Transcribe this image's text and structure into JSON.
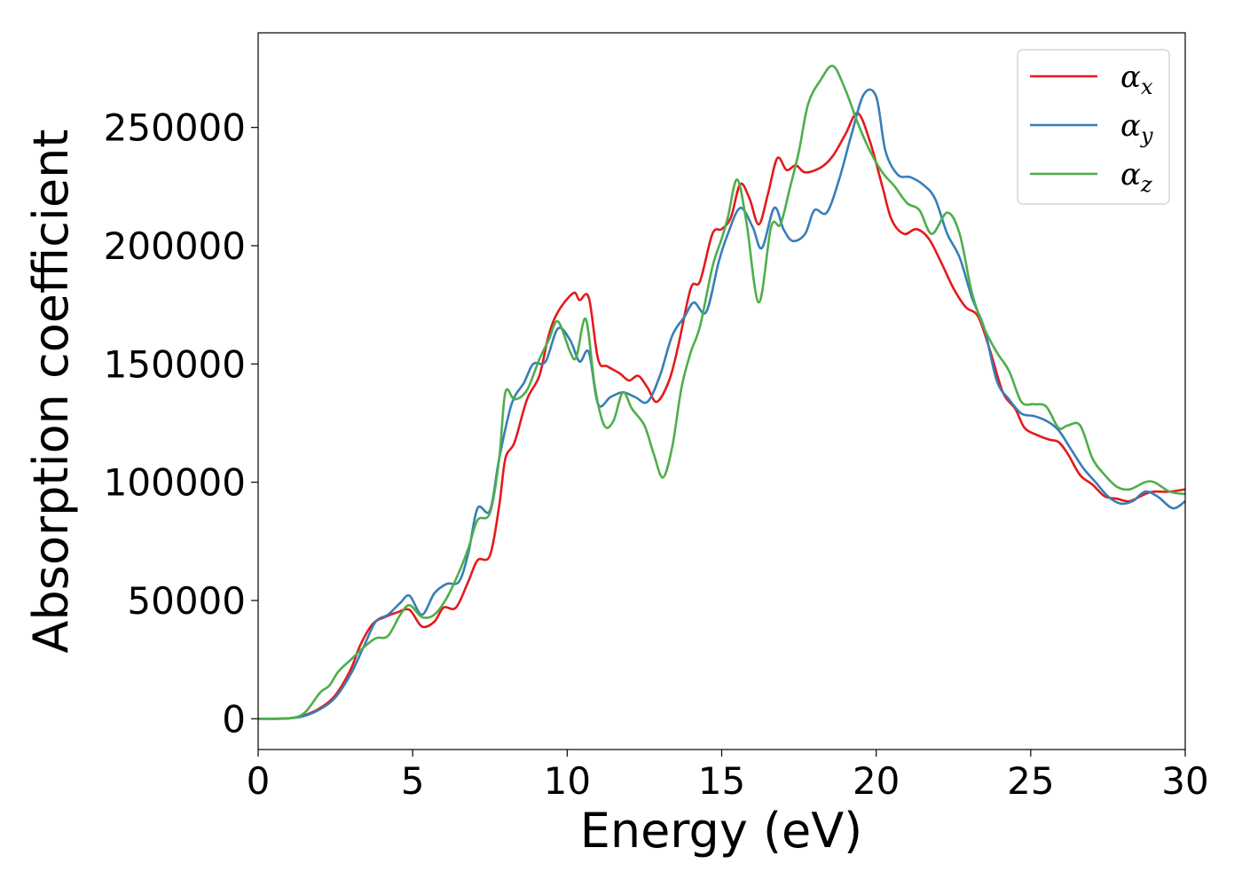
{
  "chart_data": {
    "type": "line",
    "title": "",
    "xlabel": "Energy (eV)",
    "ylabel": "Absorption coefficient",
    "xlim": [
      0,
      30
    ],
    "ylim": [
      -13000,
      290000
    ],
    "xticks": [
      0,
      5,
      10,
      15,
      20,
      25,
      30
    ],
    "xtick_labels": [
      "0",
      "5",
      "10",
      "15",
      "20",
      "25",
      "30"
    ],
    "yticks": [
      0,
      50000,
      100000,
      150000,
      200000,
      250000
    ],
    "ytick_labels": [
      "0",
      "50000",
      "100000",
      "150000",
      "200000",
      "250000"
    ],
    "grid": false,
    "legend_position": "top-right",
    "series": [
      {
        "name": "α_x",
        "label_base": "α",
        "label_sub": "x",
        "color": "#e41a1c",
        "points": [
          [
            0,
            0
          ],
          [
            1,
            200
          ],
          [
            1.5,
            1500
          ],
          [
            2,
            4500
          ],
          [
            2.5,
            10000
          ],
          [
            3,
            21000
          ],
          [
            3.3,
            31000
          ],
          [
            3.7,
            40000
          ],
          [
            4.1,
            43000
          ],
          [
            4.5,
            45000
          ],
          [
            4.9,
            46000
          ],
          [
            5.3,
            39000
          ],
          [
            5.7,
            41000
          ],
          [
            6,
            47000
          ],
          [
            6.4,
            47000
          ],
          [
            6.8,
            58000
          ],
          [
            7.1,
            67000
          ],
          [
            7.5,
            69000
          ],
          [
            7.8,
            90000
          ],
          [
            8,
            110000
          ],
          [
            8.3,
            117000
          ],
          [
            8.7,
            135000
          ],
          [
            9.1,
            145000
          ],
          [
            9.4,
            162000
          ],
          [
            9.7,
            172000
          ],
          [
            10.2,
            180000
          ],
          [
            10.4,
            177000
          ],
          [
            10.7,
            178000
          ],
          [
            11,
            152000
          ],
          [
            11.3,
            149000
          ],
          [
            11.7,
            146000
          ],
          [
            12,
            143000
          ],
          [
            12.3,
            145000
          ],
          [
            12.6,
            140000
          ],
          [
            12.9,
            134000
          ],
          [
            13.3,
            143000
          ],
          [
            13.6,
            158000
          ],
          [
            14,
            182000
          ],
          [
            14.3,
            185000
          ],
          [
            14.7,
            205000
          ],
          [
            15,
            207000
          ],
          [
            15.3,
            212000
          ],
          [
            15.6,
            226000
          ],
          [
            15.9,
            220000
          ],
          [
            16.2,
            209000
          ],
          [
            16.5,
            222000
          ],
          [
            16.8,
            237000
          ],
          [
            17.1,
            232000
          ],
          [
            17.4,
            234000
          ],
          [
            17.7,
            231000
          ],
          [
            18.2,
            233000
          ],
          [
            18.6,
            238000
          ],
          [
            19,
            247000
          ],
          [
            19.4,
            256000
          ],
          [
            19.8,
            244000
          ],
          [
            20.2,
            225000
          ],
          [
            20.5,
            211000
          ],
          [
            20.9,
            205000
          ],
          [
            21.3,
            207000
          ],
          [
            21.7,
            203000
          ],
          [
            22.1,
            193000
          ],
          [
            22.5,
            182000
          ],
          [
            22.9,
            174000
          ],
          [
            23.3,
            170000
          ],
          [
            23.7,
            155000
          ],
          [
            24.1,
            138000
          ],
          [
            24.5,
            131000
          ],
          [
            24.8,
            123000
          ],
          [
            25.2,
            120000
          ],
          [
            25.6,
            118000
          ],
          [
            25.9,
            117000
          ],
          [
            26.2,
            112000
          ],
          [
            26.6,
            103000
          ],
          [
            27,
            99000
          ],
          [
            27.4,
            94000
          ],
          [
            27.8,
            93000
          ],
          [
            28.2,
            92000
          ],
          [
            28.7,
            95000
          ],
          [
            29,
            96000
          ],
          [
            29.5,
            96000
          ],
          [
            30,
            97000
          ]
        ]
      },
      {
        "name": "α_y",
        "label_base": "α",
        "label_sub": "y",
        "color": "#377eb8",
        "points": [
          [
            0,
            0
          ],
          [
            1,
            200
          ],
          [
            1.5,
            1200
          ],
          [
            2,
            4000
          ],
          [
            2.5,
            9000
          ],
          [
            3,
            19000
          ],
          [
            3.4,
            30000
          ],
          [
            3.8,
            41000
          ],
          [
            4.2,
            44000
          ],
          [
            4.6,
            49000
          ],
          [
            4.9,
            52000
          ],
          [
            5.3,
            44000
          ],
          [
            5.7,
            53000
          ],
          [
            6.1,
            57000
          ],
          [
            6.5,
            58000
          ],
          [
            6.8,
            70000
          ],
          [
            7.1,
            89000
          ],
          [
            7.5,
            88000
          ],
          [
            7.8,
            110000
          ],
          [
            8.2,
            133000
          ],
          [
            8.6,
            142000
          ],
          [
            8.9,
            150000
          ],
          [
            9.3,
            151000
          ],
          [
            9.7,
            165000
          ],
          [
            10.1,
            160000
          ],
          [
            10.4,
            151000
          ],
          [
            10.7,
            155000
          ],
          [
            11,
            133000
          ],
          [
            11.4,
            136000
          ],
          [
            11.8,
            138000
          ],
          [
            12.2,
            136000
          ],
          [
            12.6,
            134000
          ],
          [
            13,
            145000
          ],
          [
            13.4,
            162000
          ],
          [
            13.8,
            170000
          ],
          [
            14.1,
            176000
          ],
          [
            14.5,
            172000
          ],
          [
            14.9,
            193000
          ],
          [
            15.2,
            205000
          ],
          [
            15.6,
            216000
          ],
          [
            16,
            208000
          ],
          [
            16.3,
            199000
          ],
          [
            16.7,
            216000
          ],
          [
            17,
            207000
          ],
          [
            17.3,
            202000
          ],
          [
            17.7,
            205000
          ],
          [
            18,
            215000
          ],
          [
            18.4,
            214000
          ],
          [
            18.8,
            228000
          ],
          [
            19.2,
            247000
          ],
          [
            19.6,
            264000
          ],
          [
            20,
            263000
          ],
          [
            20.3,
            240000
          ],
          [
            20.7,
            230000
          ],
          [
            21.1,
            229000
          ],
          [
            21.5,
            226000
          ],
          [
            21.9,
            220000
          ],
          [
            22.3,
            205000
          ],
          [
            22.7,
            195000
          ],
          [
            23.1,
            178000
          ],
          [
            23.5,
            165000
          ],
          [
            23.9,
            143000
          ],
          [
            24.3,
            135000
          ],
          [
            24.7,
            129000
          ],
          [
            25.1,
            128000
          ],
          [
            25.5,
            126000
          ],
          [
            25.9,
            122000
          ],
          [
            26.3,
            114000
          ],
          [
            26.7,
            106000
          ],
          [
            27.1,
            100000
          ],
          [
            27.5,
            94000
          ],
          [
            27.9,
            91000
          ],
          [
            28.3,
            92000
          ],
          [
            28.7,
            96000
          ],
          [
            29.1,
            94000
          ],
          [
            29.6,
            89000
          ],
          [
            30,
            92000
          ]
        ]
      },
      {
        "name": "α_z",
        "label_base": "α",
        "label_sub": "z",
        "color": "#4daf4a",
        "points": [
          [
            0,
            0
          ],
          [
            1,
            200
          ],
          [
            1.5,
            2500
          ],
          [
            2,
            11000
          ],
          [
            2.3,
            14000
          ],
          [
            2.6,
            20000
          ],
          [
            3,
            25000
          ],
          [
            3.4,
            30000
          ],
          [
            3.8,
            34000
          ],
          [
            4.2,
            35000
          ],
          [
            4.6,
            44000
          ],
          [
            4.9,
            48000
          ],
          [
            5.3,
            43000
          ],
          [
            5.7,
            44000
          ],
          [
            6.1,
            51000
          ],
          [
            6.5,
            62000
          ],
          [
            6.8,
            72000
          ],
          [
            7.1,
            84000
          ],
          [
            7.5,
            87000
          ],
          [
            7.8,
            110000
          ],
          [
            8,
            138000
          ],
          [
            8.3,
            135000
          ],
          [
            8.7,
            139000
          ],
          [
            9.1,
            152000
          ],
          [
            9.4,
            160000
          ],
          [
            9.7,
            168000
          ],
          [
            10.1,
            155000
          ],
          [
            10.3,
            153000
          ],
          [
            10.6,
            169000
          ],
          [
            10.9,
            140000
          ],
          [
            11.2,
            124000
          ],
          [
            11.5,
            126000
          ],
          [
            11.8,
            138000
          ],
          [
            12.1,
            131000
          ],
          [
            12.5,
            124000
          ],
          [
            12.8,
            112000
          ],
          [
            13.1,
            102000
          ],
          [
            13.4,
            115000
          ],
          [
            13.7,
            140000
          ],
          [
            14,
            155000
          ],
          [
            14.3,
            166000
          ],
          [
            14.7,
            191000
          ],
          [
            15,
            203000
          ],
          [
            15.2,
            212000
          ],
          [
            15.5,
            228000
          ],
          [
            15.8,
            210000
          ],
          [
            16.2,
            176000
          ],
          [
            16.6,
            208000
          ],
          [
            16.9,
            209000
          ],
          [
            17.2,
            224000
          ],
          [
            17.5,
            240000
          ],
          [
            17.8,
            260000
          ],
          [
            18.2,
            270000
          ],
          [
            18.6,
            276000
          ],
          [
            19,
            266000
          ],
          [
            19.4,
            252000
          ],
          [
            19.8,
            240000
          ],
          [
            20.2,
            231000
          ],
          [
            20.6,
            225000
          ],
          [
            21,
            218000
          ],
          [
            21.4,
            215000
          ],
          [
            21.8,
            205000
          ],
          [
            22.3,
            214000
          ],
          [
            22.7,
            205000
          ],
          [
            23.1,
            180000
          ],
          [
            23.5,
            165000
          ],
          [
            23.9,
            155000
          ],
          [
            24.3,
            147000
          ],
          [
            24.7,
            134000
          ],
          [
            25.1,
            133000
          ],
          [
            25.5,
            132000
          ],
          [
            25.9,
            123000
          ],
          [
            26.2,
            124000
          ],
          [
            26.6,
            124000
          ],
          [
            27,
            110000
          ],
          [
            27.4,
            103000
          ],
          [
            27.8,
            98000
          ],
          [
            28.2,
            97000
          ],
          [
            28.7,
            100000
          ],
          [
            29,
            100000
          ],
          [
            29.5,
            96000
          ],
          [
            30,
            95000
          ]
        ]
      }
    ]
  }
}
